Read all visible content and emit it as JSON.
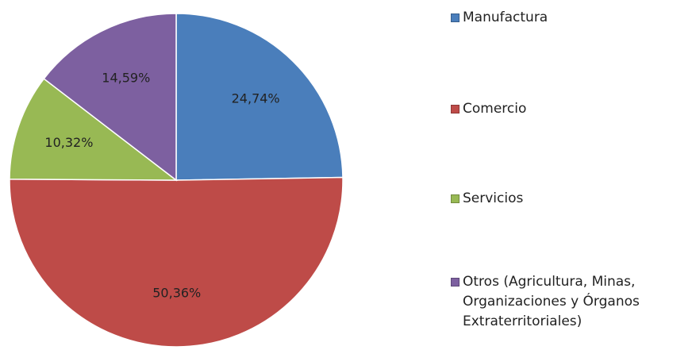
{
  "chart_data": {
    "type": "pie",
    "categories": [
      "Manufactura",
      "Comercio",
      "Servicios",
      "Otros (Agricultura, Minas, Organizaciones y Órganos Extraterritoriales)"
    ],
    "values": [
      24.74,
      50.36,
      10.32,
      14.59
    ],
    "value_labels": [
      "24,74%",
      "50,36%",
      "10,32%",
      "14,59%"
    ],
    "colors": [
      "#4a7ebb",
      "#be4b48",
      "#98b954",
      "#7d60a0"
    ],
    "legend": "right"
  }
}
